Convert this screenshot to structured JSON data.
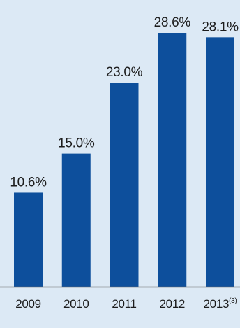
{
  "colors": {
    "background": "#dce9f5",
    "bar": "#0d4f9c",
    "label_text": "#1c1c1c",
    "baseline": "#6e6e6e"
  },
  "chart_data": {
    "type": "bar",
    "categories": [
      "2009",
      "2010",
      "2011",
      "2012",
      "2013"
    ],
    "category_notes": [
      "",
      "",
      "",
      "",
      "(3)"
    ],
    "values": [
      10.6,
      15.0,
      23.0,
      28.6,
      28.1
    ],
    "data_labels": [
      "10.6%",
      "15.0%",
      "23.0%",
      "28.6%",
      "28.1%"
    ],
    "title": "",
    "xlabel": "",
    "ylabel": "",
    "ylim": [
      0,
      28.6
    ],
    "grid": false,
    "legend": "none"
  }
}
